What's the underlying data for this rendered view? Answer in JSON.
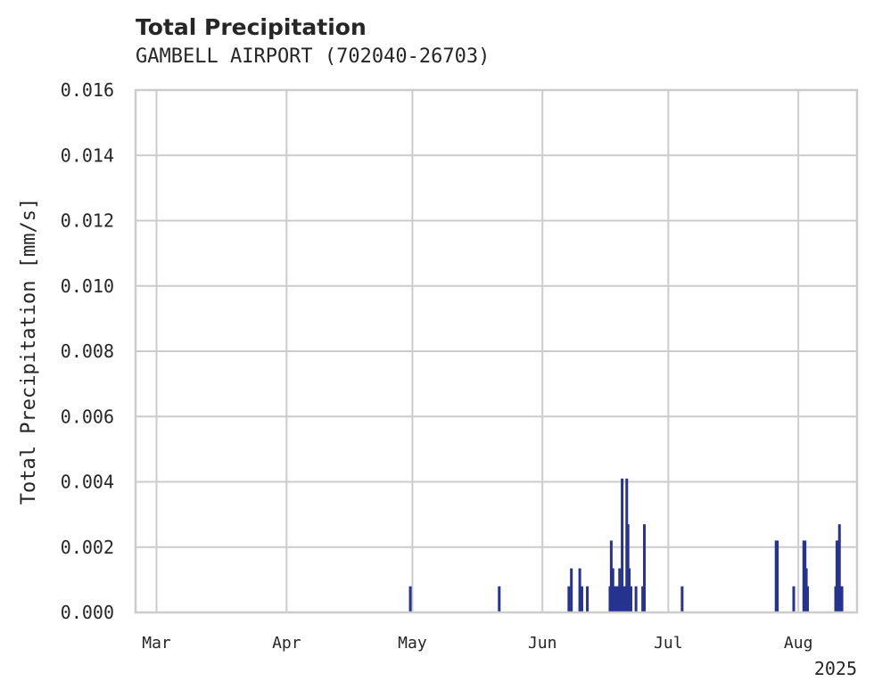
{
  "title": "Total Precipitation",
  "subtitle": "GAMBELL AIRPORT (702040-26703)",
  "colors": {
    "bar": "#26338f",
    "grid": "#cccccc",
    "spine": "#cccccc",
    "text": "#262626"
  },
  "chart_data": {
    "type": "bar",
    "title": "Total Precipitation",
    "subtitle": "GAMBELL AIRPORT (702040-26703)",
    "ylabel": "Total Precipitation [mm/s]",
    "xlabel": "",
    "x_year_label": "2025",
    "xlim_day_of_year": [
      55,
      227
    ],
    "ylim": [
      0,
      0.016
    ],
    "yticks": [
      0.0,
      0.002,
      0.004,
      0.006,
      0.008,
      0.01,
      0.012,
      0.014,
      0.016
    ],
    "ytick_labels": [
      "0.000",
      "0.002",
      "0.004",
      "0.006",
      "0.008",
      "0.010",
      "0.012",
      "0.014",
      "0.016"
    ],
    "xticks": [
      {
        "label": "Mar",
        "day": 60
      },
      {
        "label": "Apr",
        "day": 91
      },
      {
        "label": "May",
        "day": 121
      },
      {
        "label": "Jun",
        "day": 152
      },
      {
        "label": "Jul",
        "day": 182
      },
      {
        "label": "Aug",
        "day": 213
      }
    ],
    "grid": true,
    "series": [
      {
        "name": "Total Precipitation",
        "points": [
          {
            "day": 120.5,
            "value": 0.0008
          },
          {
            "day": 141.7,
            "value": 0.0008
          },
          {
            "day": 158.3,
            "value": 0.0008
          },
          {
            "day": 158.9,
            "value": 0.00135
          },
          {
            "day": 160.9,
            "value": 0.00135
          },
          {
            "day": 161.4,
            "value": 0.0008
          },
          {
            "day": 162.7,
            "value": 0.0008
          },
          {
            "day": 168.1,
            "value": 0.0008
          },
          {
            "day": 168.4,
            "value": 0.0022
          },
          {
            "day": 168.8,
            "value": 0.00135
          },
          {
            "day": 169.2,
            "value": 0.0008
          },
          {
            "day": 169.6,
            "value": 0.0008
          },
          {
            "day": 170.0,
            "value": 0.0008
          },
          {
            "day": 170.4,
            "value": 0.00135
          },
          {
            "day": 170.7,
            "value": 0.0008
          },
          {
            "day": 171.0,
            "value": 0.0041
          },
          {
            "day": 171.4,
            "value": 0.0008
          },
          {
            "day": 171.8,
            "value": 0.0008
          },
          {
            "day": 172.1,
            "value": 0.0041
          },
          {
            "day": 172.4,
            "value": 0.0027
          },
          {
            "day": 172.7,
            "value": 0.00135
          },
          {
            "day": 173.1,
            "value": 0.0008
          },
          {
            "day": 174.3,
            "value": 0.0008
          },
          {
            "day": 175.9,
            "value": 0.0008
          },
          {
            "day": 176.3,
            "value": 0.0027
          },
          {
            "day": 185.3,
            "value": 0.0008
          },
          {
            "day": 207.7,
            "value": 0.0022
          },
          {
            "day": 208.0,
            "value": 0.0022
          },
          {
            "day": 211.9,
            "value": 0.0008
          },
          {
            "day": 214.3,
            "value": 0.0022
          },
          {
            "day": 214.6,
            "value": 0.0022
          },
          {
            "day": 214.9,
            "value": 0.00135
          },
          {
            "day": 215.2,
            "value": 0.0008
          },
          {
            "day": 221.9,
            "value": 0.0008
          },
          {
            "day": 222.2,
            "value": 0.0022
          },
          {
            "day": 222.5,
            "value": 0.0022
          },
          {
            "day": 222.8,
            "value": 0.0027
          },
          {
            "day": 223.1,
            "value": 0.0008
          },
          {
            "day": 223.4,
            "value": 0.0008
          }
        ]
      }
    ]
  }
}
